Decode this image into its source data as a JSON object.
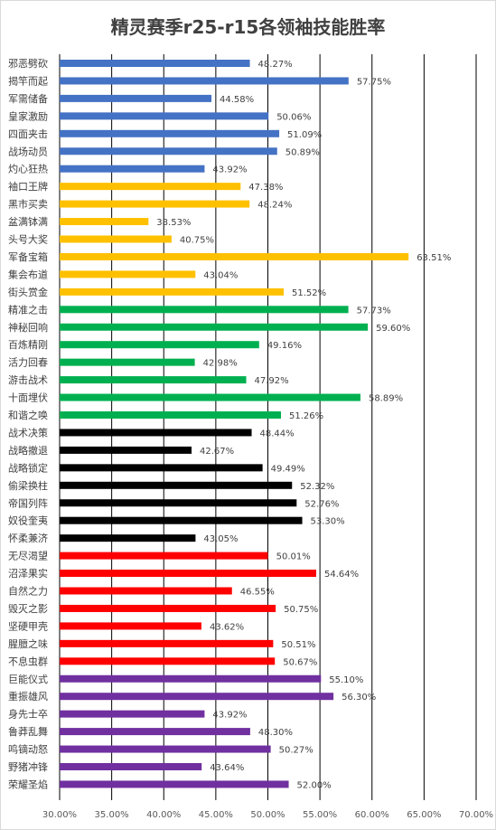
{
  "chart_data": {
    "type": "bar",
    "orientation": "horizontal",
    "title": "精灵赛季r25-r15各领袖技能胜率",
    "xlabel": "",
    "ylabel": "",
    "xlim": [
      30,
      70
    ],
    "x_ticks": [
      "30.00%",
      "35.00%",
      "40.00%",
      "45.00%",
      "50.00%",
      "55.00%",
      "60.00%",
      "65.00%",
      "70.00%"
    ],
    "grid": "vertical",
    "legend": "none",
    "categories": [
      "邪恶劈砍",
      "揭竿而起",
      "军需储备",
      "皇家激励",
      "四面夹击",
      "战场动员",
      "灼心狂热",
      "袖口王牌",
      "黑市买卖",
      "盆满钵满",
      "头号大奖",
      "军备宝箱",
      "集会布道",
      "街头赏金",
      "精准之击",
      "神秘回响",
      "百炼精刚",
      "活力回春",
      "游击战术",
      "十面埋伏",
      "和谐之唤",
      "战术决策",
      "战略撤退",
      "战略锁定",
      "偷梁换柱",
      "帝国列阵",
      "奴役奎夷",
      "怀柔兼济",
      "无尽渴望",
      "沼泽果实",
      "自然之力",
      "毁灭之影",
      "坚硬甲壳",
      "腥膻之味",
      "不息虫群",
      "巨能仪式",
      "重振雄风",
      "身先士卒",
      "鲁莽乱舞",
      "鸣镝动怒",
      "野猪冲锋",
      "荣耀圣焰"
    ],
    "values": [
      48.27,
      57.75,
      44.58,
      50.06,
      51.09,
      50.89,
      43.92,
      47.38,
      48.24,
      38.53,
      40.75,
      63.51,
      43.04,
      51.52,
      57.73,
      59.6,
      49.16,
      42.98,
      47.92,
      58.89,
      51.26,
      48.44,
      42.67,
      49.49,
      52.32,
      52.76,
      53.3,
      43.05,
      50.01,
      54.64,
      46.55,
      50.75,
      43.62,
      50.51,
      50.67,
      55.1,
      56.3,
      43.92,
      48.3,
      50.27,
      43.64,
      52.0
    ],
    "value_labels": [
      "48.27%",
      "57.75%",
      "44.58%",
      "50.06%",
      "51.09%",
      "50.89%",
      "43.92%",
      "47.38%",
      "48.24%",
      "38.53%",
      "40.75%",
      "63.51%",
      "43.04%",
      "51.52%",
      "57.73%",
      "59.60%",
      "49.16%",
      "42.98%",
      "47.92%",
      "58.89%",
      "51.26%",
      "48.44%",
      "42.67%",
      "49.49%",
      "52.32%",
      "52.76%",
      "53.30%",
      "43.05%",
      "50.01%",
      "54.64%",
      "46.55%",
      "50.75%",
      "43.62%",
      "50.51%",
      "50.67%",
      "55.10%",
      "56.30%",
      "43.92%",
      "48.30%",
      "50.27%",
      "43.64%",
      "52.00%"
    ],
    "bar_colors": [
      "#4472c4",
      "#4472c4",
      "#4472c4",
      "#4472c4",
      "#4472c4",
      "#4472c4",
      "#4472c4",
      "#ffc000",
      "#ffc000",
      "#ffc000",
      "#ffc000",
      "#ffc000",
      "#ffc000",
      "#ffc000",
      "#00b050",
      "#00b050",
      "#00b050",
      "#00b050",
      "#00b050",
      "#00b050",
      "#00b050",
      "#000000",
      "#000000",
      "#000000",
      "#000000",
      "#000000",
      "#000000",
      "#000000",
      "#ff0000",
      "#ff0000",
      "#ff0000",
      "#ff0000",
      "#ff0000",
      "#ff0000",
      "#ff0000",
      "#7030a0",
      "#7030a0",
      "#7030a0",
      "#7030a0",
      "#7030a0",
      "#7030a0",
      "#7030a0"
    ]
  }
}
